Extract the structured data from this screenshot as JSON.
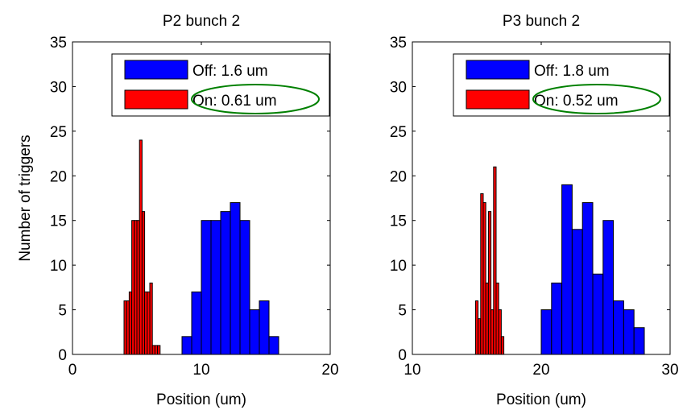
{
  "figure": {
    "ylabel": "Number of triggers"
  },
  "chart_data": [
    {
      "type": "bar",
      "title": "P2 bunch 2",
      "xlabel": "Position (um)",
      "ylabel": "Number of triggers",
      "xlim": [
        0,
        20
      ],
      "ylim": [
        0,
        35
      ],
      "xticks": [
        0,
        10,
        20
      ],
      "yticks": [
        0,
        5,
        10,
        15,
        20,
        25,
        30,
        35
      ],
      "grid": false,
      "legend_position": "top-right",
      "series": [
        {
          "name": "Off: 1.6 um",
          "color": "#0000ff",
          "bin_width": 0.75,
          "bin_starts": [
            8.5,
            9.25,
            10.0,
            10.75,
            11.5,
            12.25,
            13.0,
            13.75,
            14.5,
            15.25
          ],
          "counts": [
            2,
            7,
            15,
            15,
            16,
            17,
            15,
            5,
            6,
            2
          ]
        },
        {
          "name": "On: 0.61 um",
          "color": "#ff0000",
          "bin_width": 0.2,
          "bin_starts": [
            4.0,
            4.2,
            4.4,
            4.6,
            4.8,
            5.0,
            5.2,
            5.4,
            5.6,
            5.8,
            6.0,
            6.2,
            6.4,
            6.6,
            6.8
          ],
          "counts": [
            6,
            6,
            7,
            15,
            15,
            15,
            24,
            16,
            7,
            7,
            8,
            1,
            1,
            1,
            0
          ]
        }
      ],
      "annotation": {
        "shape": "ellipse",
        "color": "#008000",
        "target": "On: 0.61 um"
      }
    },
    {
      "type": "bar",
      "title": "P3 bunch 2",
      "xlabel": "Position (um)",
      "ylabel": "",
      "xlim": [
        10,
        30
      ],
      "ylim": [
        0,
        35
      ],
      "xticks": [
        10,
        20,
        30
      ],
      "yticks": [
        0,
        5,
        10,
        15,
        20,
        25,
        30,
        35
      ],
      "grid": false,
      "legend_position": "top-right",
      "series": [
        {
          "name": "Off: 1.8 um",
          "color": "#0000ff",
          "bin_width": 0.8,
          "bin_starts": [
            20.0,
            20.8,
            21.6,
            22.4,
            23.2,
            24.0,
            24.8,
            25.6,
            26.4,
            27.2
          ],
          "counts": [
            5,
            8,
            19,
            14,
            17,
            9,
            15,
            6,
            5,
            3
          ]
        },
        {
          "name": "On: 0.52 um",
          "color": "#ff0000",
          "bin_width": 0.2,
          "bin_starts": [
            14.9,
            15.1,
            15.3,
            15.5,
            15.7,
            15.9,
            16.1,
            16.3,
            16.5,
            16.7,
            16.9
          ],
          "counts": [
            6,
            4,
            18,
            17,
            8,
            16,
            5,
            21,
            8,
            5,
            2
          ]
        }
      ],
      "annotation": {
        "shape": "ellipse",
        "color": "#008000",
        "target": "On: 0.52 um"
      }
    }
  ]
}
